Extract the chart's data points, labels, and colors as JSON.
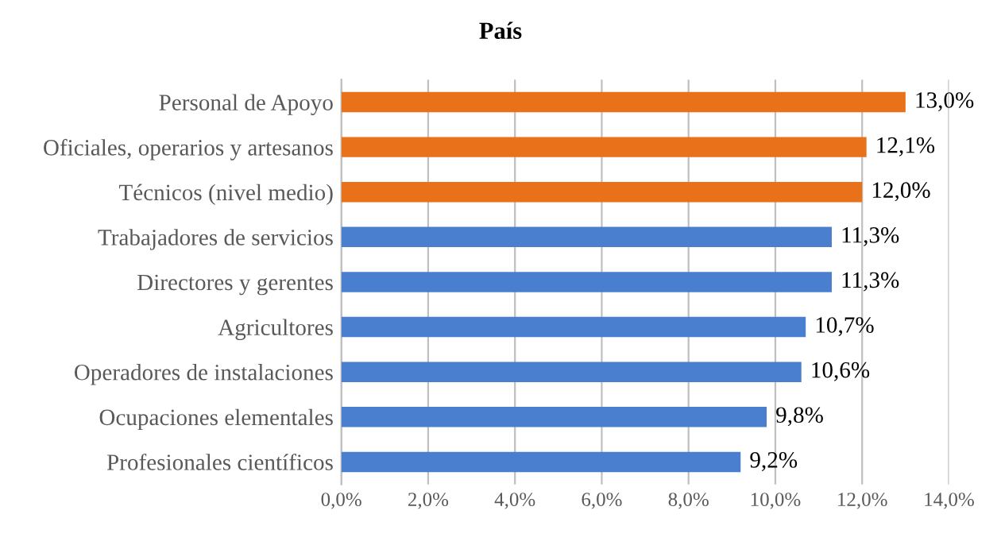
{
  "chart_data": {
    "type": "bar",
    "orientation": "horizontal",
    "title": "País",
    "categories": [
      "Personal de Apoyo",
      "Oficiales, operarios y artesanos",
      "Técnicos (nivel medio)",
      "Trabajadores de servicios",
      "Directores y gerentes",
      "Agricultores",
      "Operadores de instalaciones",
      "Ocupaciones elementales",
      "Profesionales científicos"
    ],
    "values": [
      13.0,
      12.1,
      12.0,
      11.3,
      11.3,
      10.7,
      10.6,
      9.8,
      9.2
    ],
    "value_labels": [
      "13,0%",
      "12,1%",
      "12,0%",
      "11,3%",
      "11,3%",
      "10,7%",
      "10,6%",
      "9,8%",
      "9,2%"
    ],
    "colors": [
      "#e8711a",
      "#e8711a",
      "#e8711a",
      "#4a7fd0",
      "#4a7fd0",
      "#4a7fd0",
      "#4a7fd0",
      "#4a7fd0",
      "#4a7fd0"
    ],
    "xlim": [
      0,
      14
    ],
    "xticks": [
      {
        "value": 0,
        "label": "0,0%"
      },
      {
        "value": 2,
        "label": "2,0%"
      },
      {
        "value": 4,
        "label": "4,0%"
      },
      {
        "value": 6,
        "label": "6,0%"
      },
      {
        "value": 8,
        "label": "8,0%"
      },
      {
        "value": 10,
        "label": "10,0%"
      },
      {
        "value": 12,
        "label": "12,0%"
      },
      {
        "value": 14,
        "label": "14,0%"
      }
    ],
    "grid": "x",
    "legend": false
  }
}
